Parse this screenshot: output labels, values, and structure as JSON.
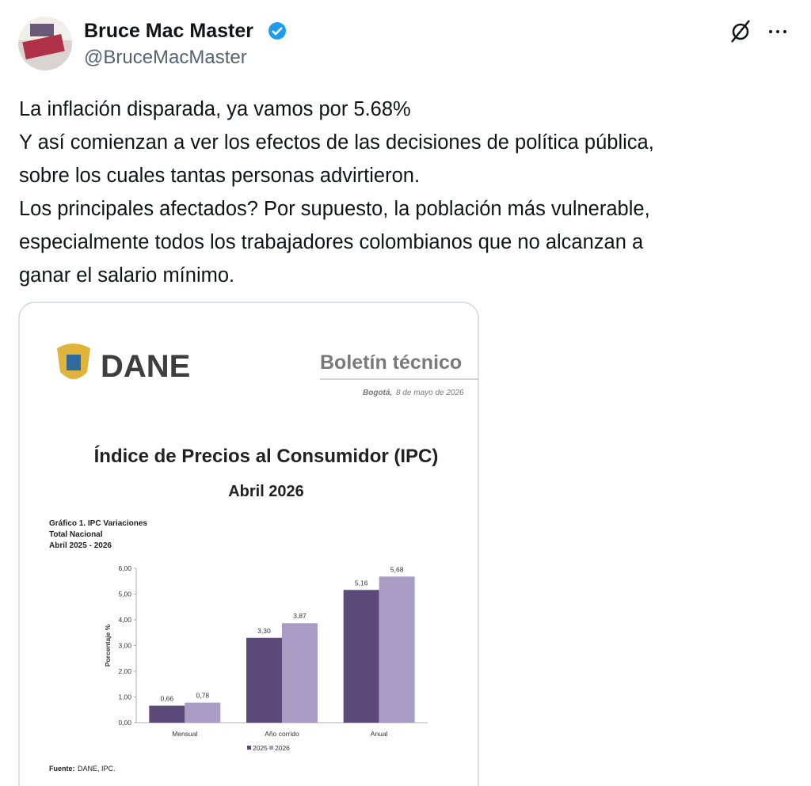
{
  "tweet": {
    "author": {
      "name": "Bruce Mac Master",
      "handle": "@BruceMacMaster"
    },
    "text_lines": [
      "La inflación disparada, ya vamos por 5.68%",
      "Y así comienzan a ver los efectos de las decisiones de política pública,",
      "sobre los cuales tantas personas advirtieron.",
      "Los principales afectados? Por supuesto, la población más vulnerable,",
      "especialmente todos los trabajadores colombianos que no alcanzan a",
      "ganar el salario mínimo."
    ]
  },
  "document": {
    "logo_text": "DANE",
    "kind": "Boletín técnico",
    "place": "Bogotá,",
    "date": "8 de mayo de 2026",
    "title": "Índice de Precios al Consumidor (IPC)",
    "subtitle": "Abril 2026",
    "source_label": "Fuente:",
    "source": "DANE, IPC."
  },
  "chart_data": {
    "type": "bar",
    "title_lines": [
      "Gráfico 1. IPC Variaciones",
      "Total Nacional",
      "Abril 2025 - 2026"
    ],
    "y_label": "Porcentaje %",
    "categories": [
      "Mensual",
      "Año corrido",
      "Anual"
    ],
    "series": [
      {
        "name": "2025",
        "color": "#5c4a7a",
        "values": [
          0.66,
          3.3,
          5.16
        ],
        "value_labels": [
          "0,66",
          "3,30",
          "5,16"
        ]
      },
      {
        "name": "2026",
        "color": "#a99dc6",
        "values": [
          0.78,
          3.87,
          5.68
        ],
        "value_labels": [
          "0,78",
          "3,87",
          "5,68"
        ]
      }
    ],
    "ylim": [
      0,
      6
    ],
    "yticks": [
      {
        "value": 0,
        "label": "0,00"
      },
      {
        "value": 1,
        "label": "1,00"
      },
      {
        "value": 2,
        "label": "2,00"
      },
      {
        "value": 3,
        "label": "3,00"
      },
      {
        "value": 4,
        "label": "4,00"
      },
      {
        "value": 5,
        "label": "5,00"
      },
      {
        "value": 6,
        "label": "6,00"
      }
    ],
    "legend": "bottom"
  }
}
